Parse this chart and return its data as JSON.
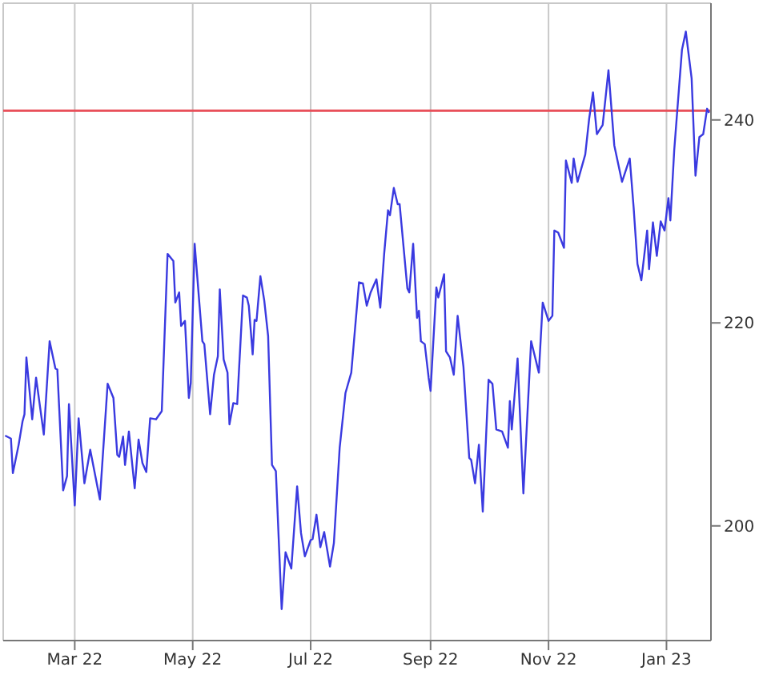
{
  "chart_data": {
    "type": "line",
    "x": [
      "2022-01-24",
      "2022-01-27",
      "2022-01-28",
      "2022-01-31",
      "2022-02-02",
      "2022-02-03",
      "2022-02-04",
      "2022-02-07",
      "2022-02-09",
      "2022-02-13",
      "2022-02-16",
      "2022-02-19",
      "2022-02-20",
      "2022-02-23",
      "2022-02-25",
      "2022-02-26",
      "2022-03-01",
      "2022-03-03",
      "2022-03-06",
      "2022-03-09",
      "2022-03-14",
      "2022-03-18",
      "2022-03-21",
      "2022-03-23",
      "2022-03-24",
      "2022-03-26",
      "2022-03-27",
      "2022-03-29",
      "2022-04-01",
      "2022-04-03",
      "2022-04-05",
      "2022-04-07",
      "2022-04-09",
      "2022-04-12",
      "2022-04-15",
      "2022-04-18",
      "2022-04-21",
      "2022-04-22",
      "2022-04-24",
      "2022-04-25",
      "2022-04-27",
      "2022-04-29",
      "2022-04-30",
      "2022-05-02",
      "2022-05-06",
      "2022-05-07",
      "2022-05-10",
      "2022-05-12",
      "2022-05-14",
      "2022-05-15",
      "2022-05-17",
      "2022-05-19",
      "2022-05-20",
      "2022-05-22",
      "2022-05-24",
      "2022-05-27",
      "2022-05-29",
      "2022-05-30",
      "2022-06-01",
      "2022-06-02",
      "2022-06-03",
      "2022-06-05",
      "2022-06-07",
      "2022-06-09",
      "2022-06-11",
      "2022-06-13",
      "2022-06-16",
      "2022-06-18",
      "2022-06-21",
      "2022-06-24",
      "2022-06-26",
      "2022-06-28",
      "2022-07-01",
      "2022-07-02",
      "2022-07-04",
      "2022-07-06",
      "2022-07-08",
      "2022-07-11",
      "2022-07-13",
      "2022-07-16",
      "2022-07-19",
      "2022-07-22",
      "2022-07-26",
      "2022-07-28",
      "2022-07-30",
      "2022-08-01",
      "2022-08-04",
      "2022-08-06",
      "2022-08-08",
      "2022-08-10",
      "2022-08-11",
      "2022-08-13",
      "2022-08-15",
      "2022-08-16",
      "2022-08-20",
      "2022-08-21",
      "2022-08-23",
      "2022-08-25",
      "2022-08-26",
      "2022-08-27",
      "2022-08-29",
      "2022-08-31",
      "2022-09-01",
      "2022-09-04",
      "2022-09-05",
      "2022-09-08",
      "2022-09-09",
      "2022-09-11",
      "2022-09-13",
      "2022-09-15",
      "2022-09-18",
      "2022-09-21",
      "2022-09-22",
      "2022-09-24",
      "2022-09-26",
      "2022-09-28",
      "2022-10-01",
      "2022-10-03",
      "2022-10-05",
      "2022-10-08",
      "2022-10-11",
      "2022-10-12",
      "2022-10-13",
      "2022-10-16",
      "2022-10-19",
      "2022-10-23",
      "2022-10-27",
      "2022-10-29",
      "2022-11-01",
      "2022-11-03",
      "2022-11-04",
      "2022-11-06",
      "2022-11-09",
      "2022-11-10",
      "2022-11-13",
      "2022-11-14",
      "2022-11-16",
      "2022-11-20",
      "2022-11-22",
      "2022-11-24",
      "2022-11-26",
      "2022-11-29",
      "2022-12-02",
      "2022-12-05",
      "2022-12-09",
      "2022-12-13",
      "2022-12-15",
      "2022-12-17",
      "2022-12-19",
      "2022-12-22",
      "2022-12-23",
      "2022-12-25",
      "2022-12-27",
      "2022-12-29",
      "2022-12-31",
      "2023-01-02",
      "2023-01-03",
      "2023-01-05",
      "2023-01-09",
      "2023-01-11",
      "2023-01-14",
      "2023-01-16",
      "2023-01-18",
      "2023-01-20",
      "2023-01-22",
      "2023-01-23"
    ],
    "series": [
      {
        "color": "#3a3ae0",
        "values": [
          208.9,
          208.6,
          205.2,
          208.0,
          210.3,
          211.0,
          216.6,
          210.5,
          214.6,
          209.0,
          218.2,
          215.5,
          215.4,
          203.5,
          204.9,
          212.0,
          202.0,
          210.6,
          204.2,
          207.5,
          202.6,
          214.0,
          212.6,
          207.0,
          206.8,
          208.8,
          206.0,
          209.3,
          203.7,
          208.5,
          206.2,
          205.3,
          210.6,
          210.5,
          211.3,
          226.8,
          226.1,
          222.0,
          223.0,
          219.7,
          220.2,
          212.6,
          214.1,
          227.8,
          218.2,
          217.9,
          211.0,
          214.9,
          216.7,
          223.3,
          216.4,
          215.1,
          210.0,
          212.1,
          212.0,
          222.7,
          222.5,
          221.7,
          216.9,
          220.3,
          220.2,
          224.6,
          222.2,
          218.7,
          206.0,
          205.4,
          191.8,
          197.4,
          195.8,
          203.9,
          199.3,
          197.0,
          198.6,
          198.7,
          201.1,
          197.9,
          199.4,
          196.0,
          198.3,
          207.7,
          213.1,
          215.1,
          224.0,
          223.9,
          221.7,
          223.0,
          224.3,
          221.5,
          226.8,
          231.1,
          230.6,
          233.3,
          231.7,
          231.7,
          223.4,
          223.0,
          227.8,
          220.5,
          221.2,
          218.2,
          217.9,
          214.6,
          213.3,
          223.5,
          222.5,
          224.8,
          217.2,
          216.6,
          214.9,
          220.7,
          215.7,
          206.7,
          206.5,
          204.2,
          208.0,
          201.4,
          214.4,
          214.0,
          209.5,
          209.3,
          207.7,
          212.3,
          209.5,
          216.5,
          203.2,
          218.2,
          215.1,
          222.0,
          220.2,
          220.7,
          229.1,
          228.9,
          227.4,
          236.0,
          233.8,
          236.2,
          233.9,
          236.6,
          240.1,
          242.7,
          238.6,
          239.5,
          244.9,
          237.5,
          233.9,
          236.2,
          231.4,
          225.8,
          224.2,
          229.1,
          225.3,
          229.9,
          226.6,
          230.0,
          229.1,
          232.3,
          230.1,
          237.0,
          246.9,
          248.7,
          244.1,
          234.5,
          238.3,
          238.6,
          241.1,
          240.7
        ]
      }
    ],
    "xlim": [
      "2022-01-23",
      "2023-01-24"
    ],
    "xticks": [
      {
        "value": "2022-03-01",
        "label": "Mar 22"
      },
      {
        "value": "2022-05-01",
        "label": "May 22"
      },
      {
        "value": "2022-07-01",
        "label": "Jul 22"
      },
      {
        "value": "2022-09-01",
        "label": "Sep 22"
      },
      {
        "value": "2022-11-01",
        "label": "Nov 22"
      },
      {
        "value": "2023-01-01",
        "label": "Jan 23"
      }
    ],
    "ylim": [
      188.7,
      251.5
    ],
    "yticks": [
      200,
      220,
      240
    ],
    "ref_lines": [
      {
        "axis": "y",
        "value": 240.9,
        "color": "#e8505a"
      }
    ],
    "grid": true,
    "marker": "none",
    "line_style": "solid"
  }
}
